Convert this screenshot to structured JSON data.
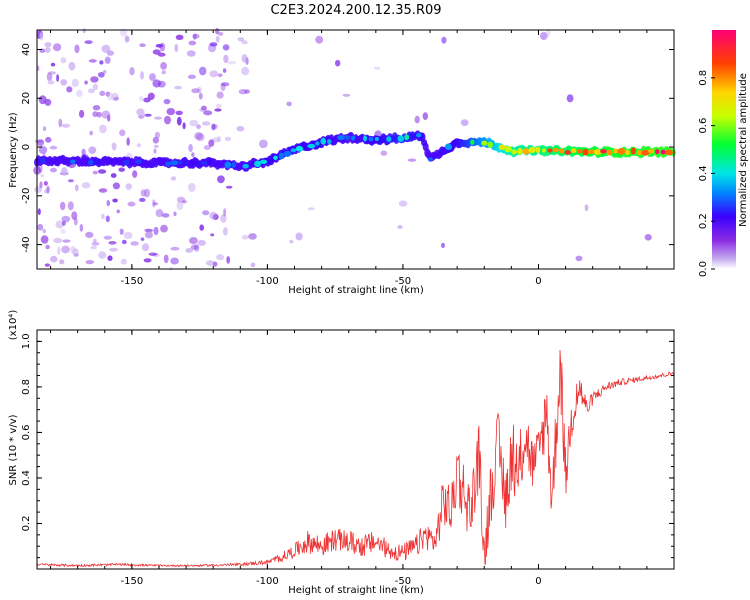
{
  "title": "C2E3.2024.200.12.35.R09",
  "colors": {
    "signal": "#ee3333",
    "background": "#ffffff",
    "colormap": [
      "#ffffff",
      "#c9b1f2",
      "#8a2be2",
      "#3a00ff",
      "#0088ff",
      "#00e5e5",
      "#00ff33",
      "#c8ff00",
      "#ffd400",
      "#ff4000",
      "#ff0077"
    ]
  },
  "chart_data": [
    {
      "type": "heatmap",
      "xlabel": "Height of straight line (km)",
      "ylabel": "Frequency (Hz)",
      "xlim": [
        -185,
        50
      ],
      "ylim": [
        -50,
        48
      ],
      "xticks": [
        -150,
        -100,
        -50,
        0
      ],
      "xtick_labels": [
        "-150",
        "-100",
        "-50",
        "0"
      ],
      "yticks": [
        -40,
        -20,
        0,
        20,
        40
      ],
      "ytick_labels": [
        "-40",
        "-20",
        "0",
        "20",
        "40"
      ],
      "ridge": [
        {
          "x": -185,
          "y": -5.5,
          "amp": 0.3
        },
        {
          "x": -160,
          "y": -6,
          "amp": 0.3
        },
        {
          "x": -140,
          "y": -6.5,
          "amp": 0.3
        },
        {
          "x": -120,
          "y": -6.5,
          "amp": 0.25
        },
        {
          "x": -110,
          "y": -8,
          "amp": 0.35
        },
        {
          "x": -100,
          "y": -6,
          "amp": 0.4
        },
        {
          "x": -90,
          "y": -1,
          "amp": 0.4
        },
        {
          "x": -80,
          "y": 2,
          "amp": 0.4
        },
        {
          "x": -70,
          "y": 4,
          "amp": 0.35
        },
        {
          "x": -60,
          "y": 3,
          "amp": 0.4
        },
        {
          "x": -50,
          "y": 3.5,
          "amp": 0.45
        },
        {
          "x": -43,
          "y": 5,
          "amp": 0.4
        },
        {
          "x": -40,
          "y": -5,
          "amp": 0.35
        },
        {
          "x": -30,
          "y": 2,
          "amp": 0.4
        },
        {
          "x": -20,
          "y": 2,
          "amp": 0.6
        },
        {
          "x": -10,
          "y": -1.5,
          "amp": 0.8
        },
        {
          "x": 0,
          "y": -1.5,
          "amp": 0.85
        },
        {
          "x": 20,
          "y": -2,
          "amp": 0.95
        },
        {
          "x": 50,
          "y": -2,
          "amp": 1.0
        }
      ],
      "colorbar": {
        "label": "Normalized spectral amplitude",
        "range": [
          0,
          1
        ],
        "ticks": [
          0.0,
          0.2,
          0.4,
          0.6,
          0.8
        ],
        "tick_labels": [
          "0.0",
          "0.2",
          "0.4",
          "0.6",
          "0.8"
        ]
      }
    },
    {
      "type": "line",
      "xlabel": "Height of straight line (km)",
      "ylabel": "SNR (10 * v/v)",
      "multiplier": "(x10⁴)",
      "xlim": [
        -185,
        50
      ],
      "ylim": [
        0,
        1.05
      ],
      "xticks": [
        -150,
        -100,
        -50,
        0
      ],
      "xtick_labels": [
        "-150",
        "-100",
        "-50",
        "0"
      ],
      "yticks": [
        0.2,
        0.4,
        0.6,
        0.8,
        1.0
      ],
      "ytick_labels": [
        "0.2",
        "0.4",
        "0.6",
        "0.8",
        "1.0"
      ],
      "series": [
        {
          "x": [
            -185,
            -170,
            -155,
            -140,
            -125,
            -110,
            -100,
            -95,
            -90,
            -85,
            -80,
            -75,
            -70,
            -65,
            -60,
            -55,
            -50,
            -45,
            -42,
            -38,
            -35,
            -32,
            -30,
            -28,
            -25,
            -22,
            -20,
            -18,
            -15,
            -12,
            -10,
            -8,
            -5,
            -2,
            0,
            3,
            5,
            8,
            10,
            12,
            15,
            18,
            20,
            25,
            30,
            35,
            40,
            45,
            50
          ],
          "y": [
            0.02,
            0.015,
            0.02,
            0.015,
            0.015,
            0.02,
            0.03,
            0.05,
            0.08,
            0.12,
            0.1,
            0.13,
            0.12,
            0.1,
            0.12,
            0.08,
            0.07,
            0.1,
            0.15,
            0.12,
            0.3,
            0.25,
            0.45,
            0.35,
            0.25,
            0.5,
            0.05,
            0.3,
            0.55,
            0.3,
            0.5,
            0.35,
            0.6,
            0.45,
            0.5,
            0.7,
            0.3,
            0.9,
            0.4,
            0.65,
            0.8,
            0.7,
            0.75,
            0.8,
            0.82,
            0.83,
            0.84,
            0.85,
            0.86
          ],
          "noise": [
            0.005,
            0.005,
            0.005,
            0.004,
            0.004,
            0.006,
            0.01,
            0.02,
            0.03,
            0.05,
            0.05,
            0.05,
            0.05,
            0.05,
            0.05,
            0.04,
            0.04,
            0.05,
            0.06,
            0.06,
            0.12,
            0.12,
            0.15,
            0.15,
            0.12,
            0.15,
            0.1,
            0.15,
            0.15,
            0.15,
            0.15,
            0.15,
            0.15,
            0.12,
            0.12,
            0.15,
            0.15,
            0.15,
            0.12,
            0.1,
            0.08,
            0.04,
            0.03,
            0.02,
            0.015,
            0.012,
            0.01,
            0.01,
            0.01
          ]
        }
      ]
    }
  ]
}
